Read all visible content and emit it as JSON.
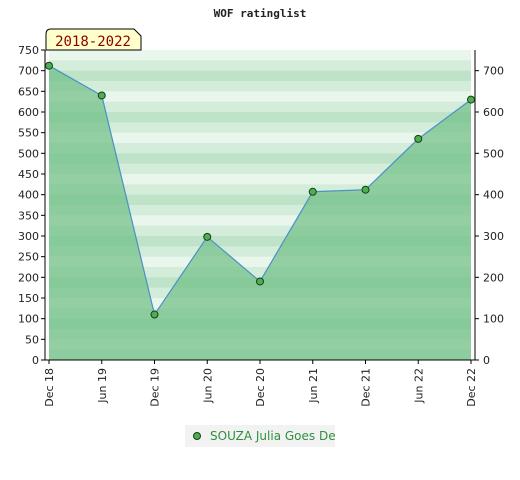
{
  "chart_data": {
    "type": "area",
    "title": "WOF ratinglist",
    "period_label": "2018-2022",
    "categories": [
      "Dec 18",
      "Jun 19",
      "Dec 19",
      "Jun 20",
      "Dec 20",
      "Jun 21",
      "Dec 21",
      "Jun 22",
      "Dec 22"
    ],
    "series": [
      {
        "name": "SOUZA Julia Goes De",
        "values": [
          712,
          640,
          110,
          298,
          190,
          407,
          412,
          535,
          630
        ]
      }
    ],
    "ylim": [
      0,
      750
    ],
    "y_ticks_left": [
      0,
      50,
      100,
      150,
      200,
      250,
      300,
      350,
      400,
      450,
      500,
      550,
      600,
      650,
      700,
      750
    ],
    "y_ticks_right": [
      0,
      100,
      200,
      300,
      400,
      500,
      600,
      700
    ],
    "grid": true,
    "legend_position": "bottom-center",
    "colors": {
      "line": "#4a90c8",
      "area": "#6fbf85",
      "marker": "#4caf50",
      "badge_bg": "#ffffcc",
      "legend_text": "#2f8f3f"
    }
  }
}
